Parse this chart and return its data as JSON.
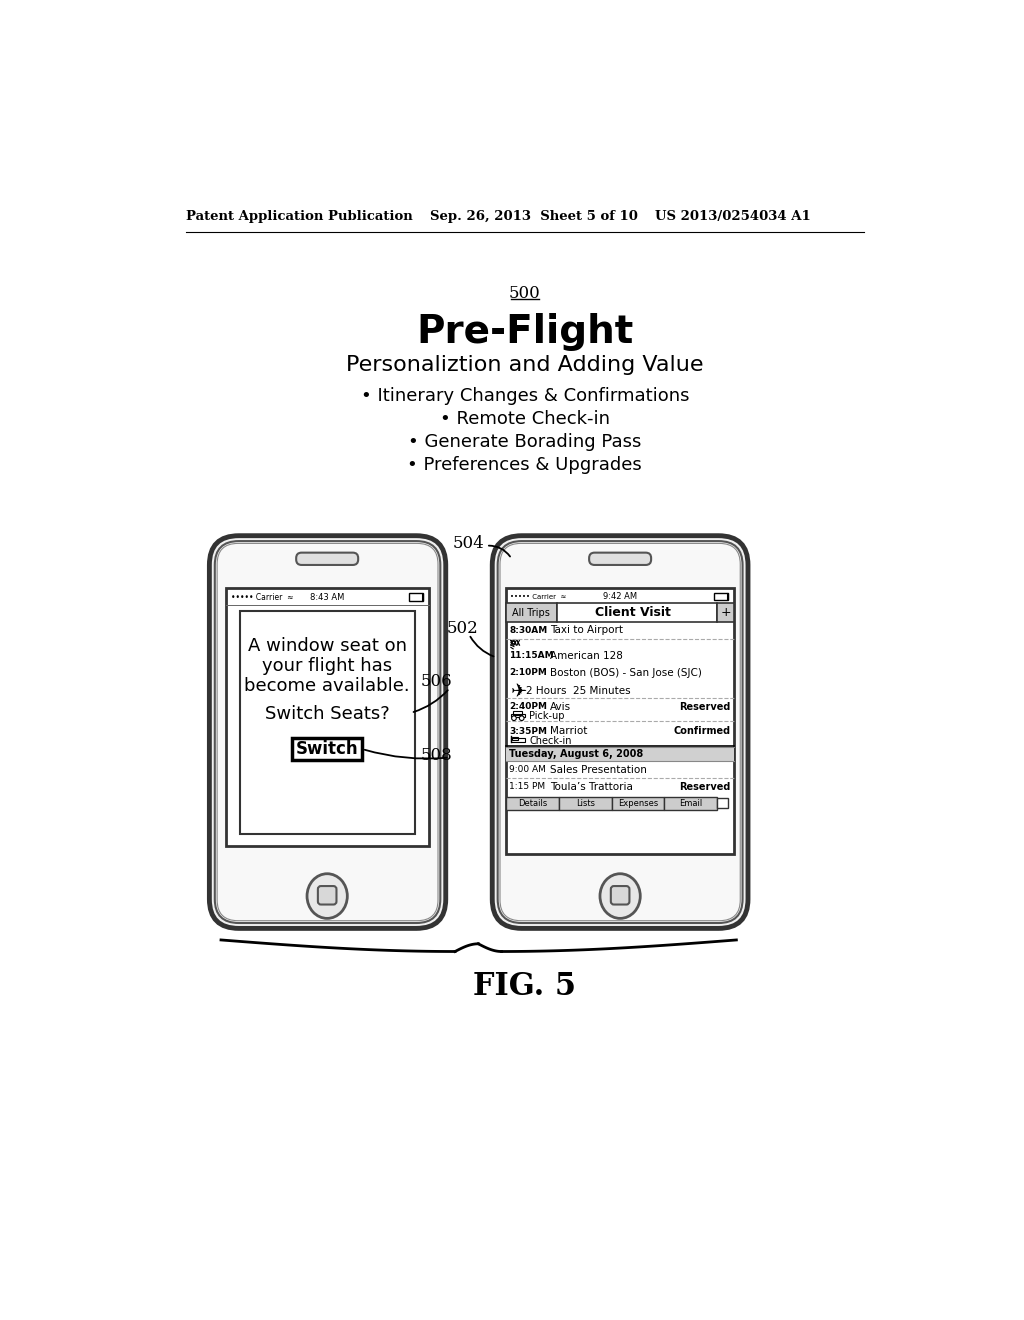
{
  "bg_color": "#ffffff",
  "header_left": "Patent Application Publication",
  "header_center": "Sep. 26, 2013  Sheet 5 of 10",
  "header_right": "US 2013/0254034 A1",
  "label_500": "500",
  "title_bold": "Pre-Flight",
  "title_sub": "Personaliztion and Adding Value",
  "bullets": [
    "• Itinerary Changes & Confirmations",
    "• Remote Check-in",
    "• Generate Borading Pass",
    "• Preferences & Upgrades"
  ],
  "fig_label": "FIG. 5",
  "label_502": "502",
  "label_504": "504",
  "label_506": "506",
  "label_508": "508",
  "phone1_status": "••••• Carrier  ≈",
  "phone1_time": "8:43 AM",
  "phone1_msg1": "A window seat on",
  "phone1_msg2": "your flight has",
  "phone1_msg3": "become available.",
  "phone1_msg4": "Switch Seats?",
  "phone1_btn": "Switch",
  "phone2_status": "••••• Carrier  ≈",
  "phone2_time": "9:42 AM",
  "phone2_tab1": "All Trips",
  "phone2_tab2": "Client Visit",
  "phone2_tab3": "+",
  "phone2_row1_time": "8:30AM",
  "phone2_row1_text": "Taxi to Airport",
  "phone2_row2_time": "11:15AM",
  "phone2_row2_text": "American 128",
  "phone2_row3_time": "2:10PM",
  "phone2_row3_text": "Boston (BOS) - San Jose (SJC)",
  "phone2_row4_text": "2 Hours  25 Minutes",
  "phone2_row5_time": "2:40PM",
  "phone2_row5_text": "Avis",
  "phone2_row5_sub": "Pick-up",
  "phone2_row5_badge": "Reserved",
  "phone2_row6_time": "3:35PM",
  "phone2_row6_text": "Marriot",
  "phone2_row6_sub": "Check-in",
  "phone2_row6_badge": "Confirmed",
  "phone2_day": "Tuesday, August 6, 2008",
  "phone2_row7_time": "9:00 AM",
  "phone2_row7_text": "Sales Presentation",
  "phone2_row8_time": "1:15 PM",
  "phone2_row8_text": "Toula’s Trattoria",
  "phone2_row8_badge": "Reserved",
  "phone2_btns": [
    "Details",
    "Lists",
    "Expenses",
    "Email"
  ]
}
